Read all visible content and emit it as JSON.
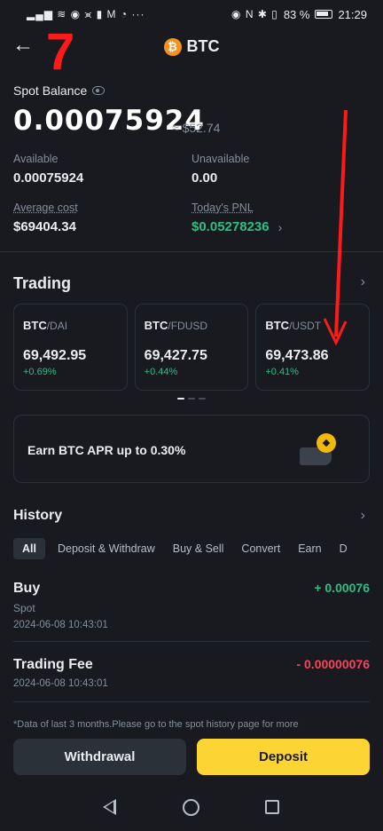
{
  "status_bar": {
    "left_icons": "▂▄▆ ≋ ◉ ⪤ ▮ M ◔ ···",
    "right_icons": "◉ N ✱ ▯",
    "battery": "83 %",
    "time": "21:29"
  },
  "header": {
    "title": "BTC",
    "coin_symbol": "₿",
    "annotation_number": "7"
  },
  "balance": {
    "label": "Spot Balance",
    "amount": "0.00075924",
    "usd_value": "≈ $52.74",
    "available_label": "Available",
    "available_value": "0.00075924",
    "unavailable_label": "Unavailable",
    "unavailable_value": "0.00",
    "avg_cost_label": "Average cost",
    "avg_cost_value": "$69404.34",
    "pnl_label": "Today's PNL",
    "pnl_value": "$0.05278236"
  },
  "trading": {
    "title": "Trading",
    "cards": [
      {
        "base": "BTC",
        "quote": "/DAI",
        "price": "69,492.95",
        "change": "+0.69%"
      },
      {
        "base": "BTC",
        "quote": "/FDUSD",
        "price": "69,427.75",
        "change": "+0.44%"
      },
      {
        "base": "BTC",
        "quote": "/USDT",
        "price": "69,473.86",
        "change": "+0.41%"
      }
    ]
  },
  "earn": {
    "text": "Earn BTC APR up to 0.30%"
  },
  "history": {
    "title": "History",
    "tabs": [
      "All",
      "Deposit & Withdraw",
      "Buy & Sell",
      "Convert",
      "Earn",
      "D"
    ],
    "rows": [
      {
        "title": "Buy",
        "sub": "Spot",
        "date": "2024-06-08 10:43:01",
        "amount": "+ 0.00076"
      },
      {
        "title": "Trading Fee",
        "sub": "",
        "date": "2024-06-08 10:43:01",
        "amount": "- 0.00000076"
      }
    ],
    "footnote": "*Data of last 3 months.Please go to the spot history page for more"
  },
  "actions": {
    "withdraw": "Withdrawal",
    "deposit": "Deposit"
  },
  "colors": {
    "background": "#181a20",
    "positive": "#2ebd85",
    "negative": "#f6465d",
    "accent": "#fcd535",
    "annotation": "#ff1a1a"
  }
}
